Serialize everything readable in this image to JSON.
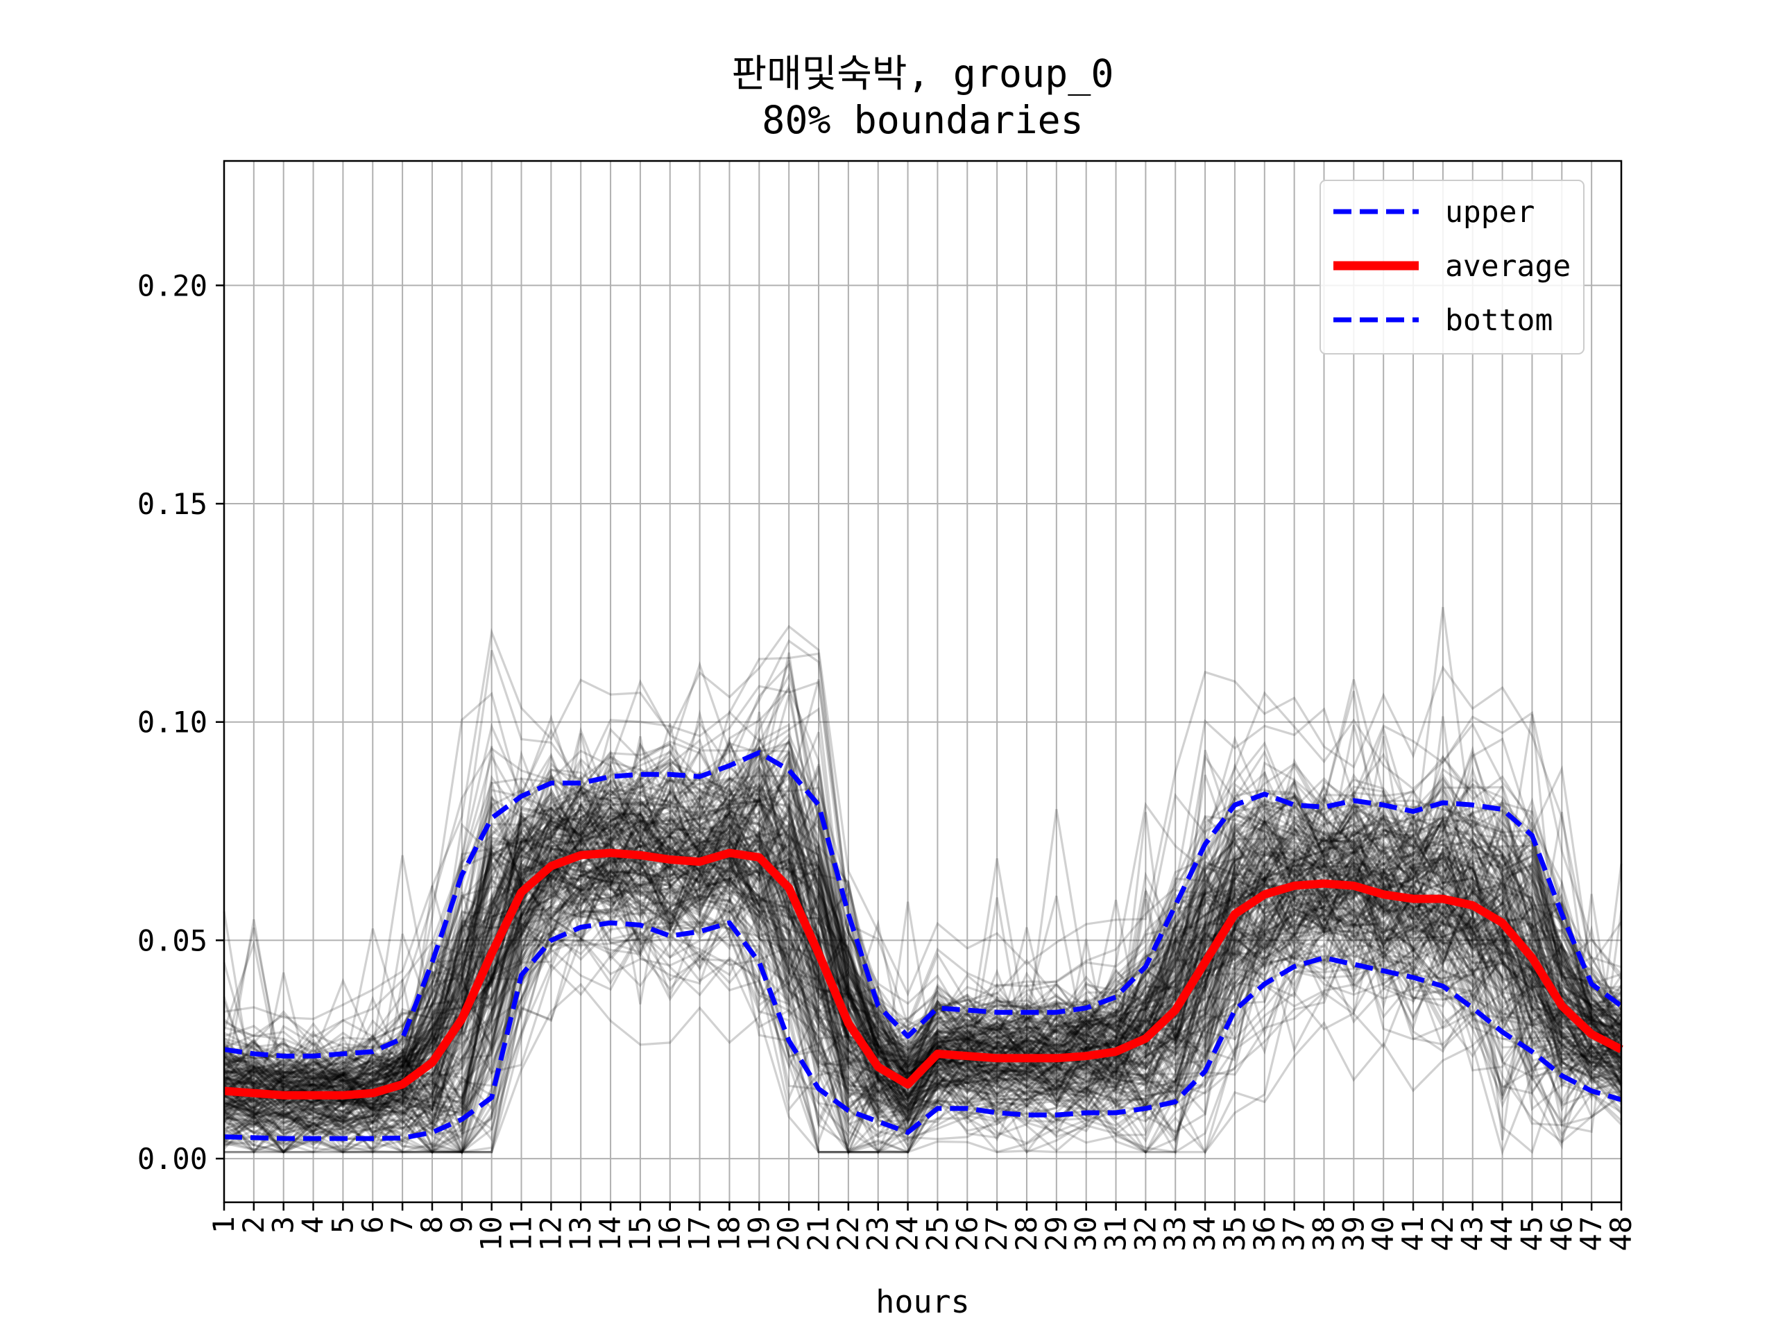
{
  "chart_data": {
    "type": "line",
    "title": "판매및숙박, group_0",
    "subtitle": "80% boundaries",
    "xlabel": "hours",
    "ylabel": "",
    "x": [
      1,
      2,
      3,
      4,
      5,
      6,
      7,
      8,
      9,
      10,
      11,
      12,
      13,
      14,
      15,
      16,
      17,
      18,
      19,
      20,
      21,
      22,
      23,
      24,
      25,
      26,
      27,
      28,
      29,
      30,
      31,
      32,
      33,
      34,
      35,
      36,
      37,
      38,
      39,
      40,
      41,
      42,
      43,
      44,
      45,
      46,
      47,
      48
    ],
    "xlim": [
      1,
      48
    ],
    "ylim": [
      -0.01,
      0.2285
    ],
    "yticks": [
      "0.00",
      "0.05",
      "0.10",
      "0.15",
      "0.20"
    ],
    "ytick_values": [
      0.0,
      0.05,
      0.1,
      0.15,
      0.2
    ],
    "grid": true,
    "legend_position": "top-right",
    "series": [
      {
        "name": "upper",
        "style": "dashed",
        "color": "#0000ff",
        "values": [
          0.025,
          0.024,
          0.0235,
          0.0235,
          0.024,
          0.0245,
          0.0275,
          0.045,
          0.065,
          0.078,
          0.083,
          0.086,
          0.086,
          0.0875,
          0.088,
          0.088,
          0.0875,
          0.09,
          0.093,
          0.089,
          0.081,
          0.056,
          0.035,
          0.028,
          0.0345,
          0.034,
          0.0335,
          0.0335,
          0.0335,
          0.0345,
          0.037,
          0.044,
          0.058,
          0.072,
          0.081,
          0.0835,
          0.081,
          0.0805,
          0.082,
          0.081,
          0.0795,
          0.0815,
          0.081,
          0.08,
          0.074,
          0.056,
          0.04,
          0.035
        ]
      },
      {
        "name": "average",
        "style": "solid",
        "color": "#ff0000",
        "values": [
          0.0155,
          0.015,
          0.0145,
          0.0145,
          0.0145,
          0.015,
          0.017,
          0.022,
          0.032,
          0.047,
          0.061,
          0.067,
          0.0695,
          0.07,
          0.0695,
          0.0685,
          0.068,
          0.07,
          0.069,
          0.062,
          0.047,
          0.031,
          0.021,
          0.017,
          0.024,
          0.0235,
          0.023,
          0.023,
          0.023,
          0.0235,
          0.0245,
          0.0275,
          0.034,
          0.045,
          0.056,
          0.0605,
          0.0625,
          0.063,
          0.0625,
          0.0605,
          0.0595,
          0.0595,
          0.058,
          0.054,
          0.046,
          0.035,
          0.0285,
          0.025
        ]
      },
      {
        "name": "bottom",
        "style": "dashed",
        "color": "#0000ff",
        "values": [
          0.005,
          0.0048,
          0.0046,
          0.0046,
          0.0046,
          0.0046,
          0.0047,
          0.006,
          0.009,
          0.014,
          0.042,
          0.05,
          0.053,
          0.054,
          0.0535,
          0.051,
          0.052,
          0.054,
          0.045,
          0.027,
          0.016,
          0.011,
          0.0085,
          0.006,
          0.0115,
          0.0115,
          0.0105,
          0.01,
          0.01,
          0.0105,
          0.0105,
          0.0115,
          0.013,
          0.02,
          0.034,
          0.04,
          0.044,
          0.046,
          0.0445,
          0.043,
          0.0415,
          0.0395,
          0.0345,
          0.029,
          0.0245,
          0.019,
          0.0155,
          0.0135
        ]
      }
    ],
    "background_lines": {
      "color": "#000000",
      "opacity": 0.18,
      "count": 220
    }
  }
}
